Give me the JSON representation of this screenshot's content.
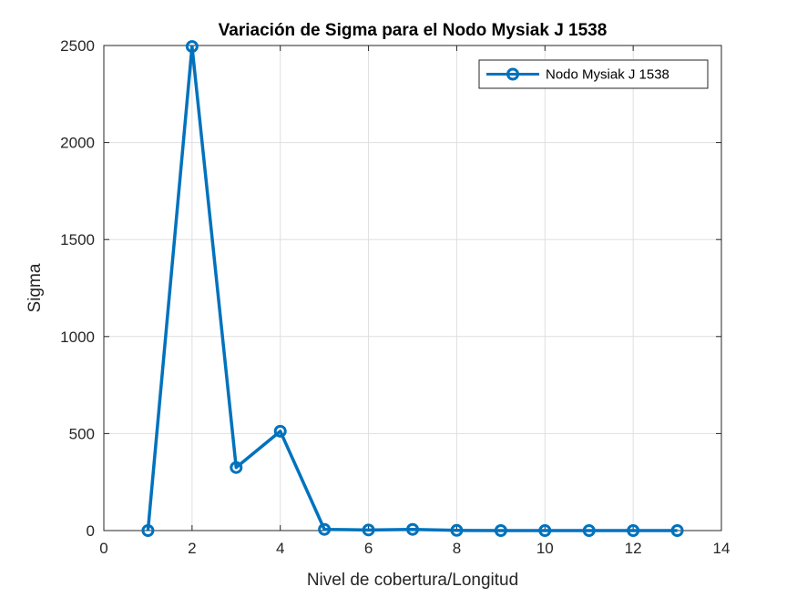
{
  "chart_data": {
    "type": "line",
    "title": "Variación de Sigma para el Nodo Mysiak J 1538",
    "xlabel": "Nivel de cobertura/Longitud",
    "ylabel": "Sigma",
    "xlim": [
      0,
      14
    ],
    "ylim": [
      0,
      2500
    ],
    "xticks": [
      0,
      2,
      4,
      6,
      8,
      10,
      12,
      14
    ],
    "yticks": [
      0,
      500,
      1000,
      1500,
      2000,
      2500
    ],
    "grid": true,
    "legend_position": "top-right",
    "series": [
      {
        "name": "Nodo Mysiak J 1538",
        "color": "#0072BD",
        "marker": "circle",
        "x": [
          1,
          2,
          3,
          4,
          5,
          6,
          7,
          8,
          9,
          10,
          11,
          12,
          13
        ],
        "y": [
          0,
          2495,
          325,
          512,
          6,
          3,
          6,
          1,
          0,
          0,
          0,
          0,
          0
        ]
      }
    ]
  }
}
